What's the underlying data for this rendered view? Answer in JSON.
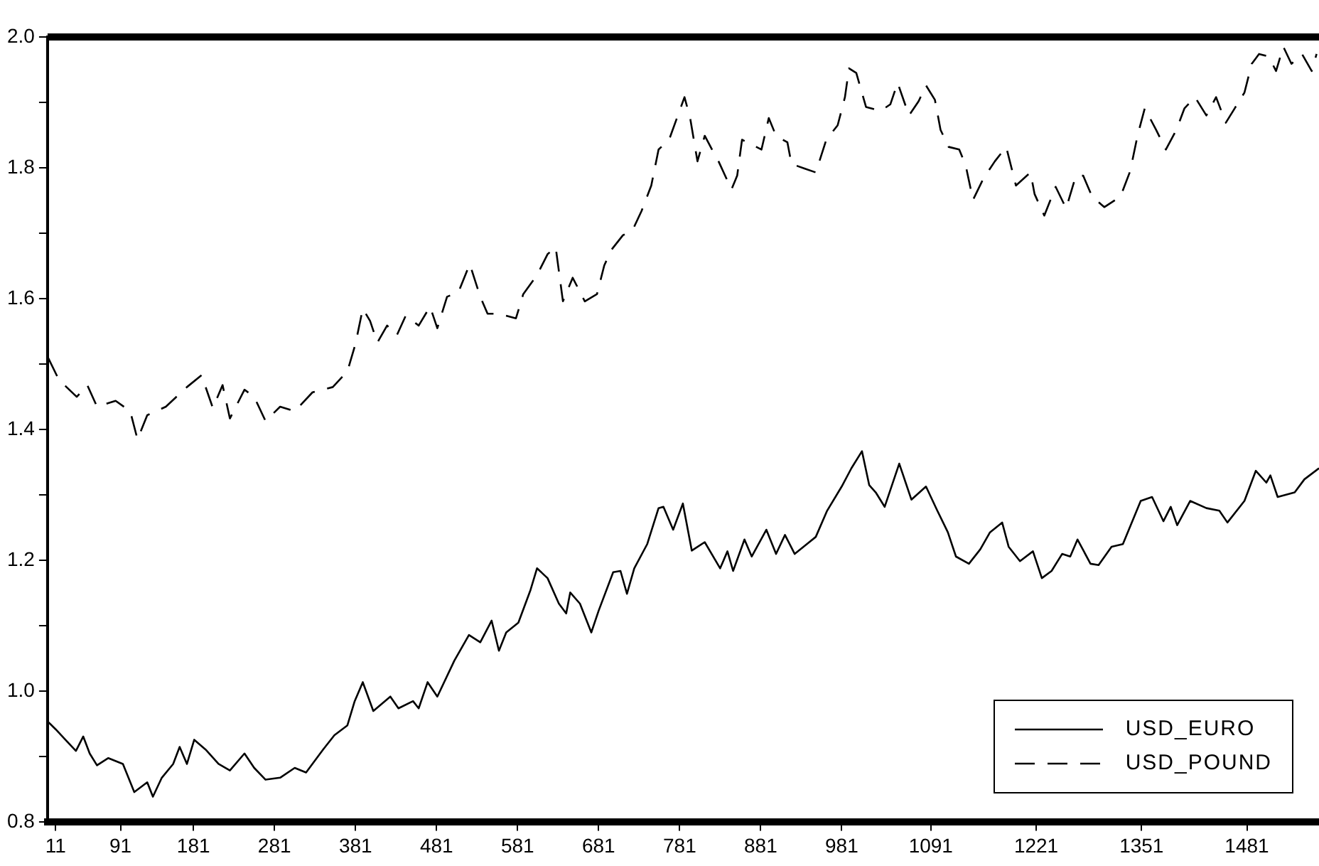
{
  "chart_data": {
    "type": "line",
    "xlim": [
      1,
      1570
    ],
    "xticks": [
      11,
      91,
      181,
      281,
      381,
      481,
      581,
      681,
      781,
      881,
      981,
      1091,
      1221,
      1351,
      1481
    ],
    "ylim": [
      0.8,
      2.0
    ],
    "yticks": [
      0.8,
      {
        "value": 0.9,
        "label": null
      },
      {
        "value": 1,
        "label": "1.0"
      },
      {
        "value": 1.1,
        "label": null
      },
      1.2,
      {
        "value": 1.3,
        "label": null
      },
      1.4,
      {
        "value": 1.5,
        "label": null
      },
      1.6,
      {
        "value": 1.7,
        "label": null
      },
      1.8,
      {
        "value": 1.9,
        "label": null
      },
      {
        "value": 2,
        "label": "2.0"
      }
    ],
    "grid": false,
    "legend": "bottom right",
    "marker": "none",
    "series": [
      {
        "name": "USD_EURO",
        "color": "#000000",
        "line_style": "solid",
        "x": [
          2,
          11,
          23,
          36,
          45,
          53,
          62,
          76,
          94,
          108,
          124,
          131,
          142,
          156,
          164,
          173,
          182,
          196,
          212,
          226,
          244,
          256,
          270,
          288,
          306,
          320,
          341,
          355,
          371,
          380,
          390,
          403,
          424,
          434,
          452,
          459,
          470,
          482,
          503,
          521,
          535,
          549,
          558,
          567,
          582,
          597,
          605,
          618,
          632,
          641,
          646,
          658,
          672,
          681,
          699,
          708,
          716,
          725,
          741,
          755,
          761,
          773,
          785,
          796,
          812,
          831,
          840,
          847,
          861,
          870,
          888,
          900,
          911,
          923,
          949,
          963,
          981,
          993,
          1006,
          1015,
          1023,
          1034,
          1052,
          1067,
          1085,
          1099,
          1112,
          1122,
          1138,
          1152,
          1164,
          1179,
          1187,
          1201,
          1217,
          1228,
          1240,
          1253,
          1263,
          1272,
          1288,
          1298,
          1314,
          1328,
          1350,
          1364,
          1378,
          1387,
          1395,
          1411,
          1431,
          1447,
          1457,
          1478,
          1492,
          1505,
          1510,
          1519,
          1540,
          1552,
          1570
        ],
        "values": [
          0.953,
          0.942,
          0.926,
          0.909,
          0.931,
          0.905,
          0.887,
          0.898,
          0.889,
          0.846,
          0.861,
          0.839,
          0.868,
          0.889,
          0.915,
          0.889,
          0.926,
          0.911,
          0.889,
          0.879,
          0.905,
          0.883,
          0.865,
          0.868,
          0.883,
          0.876,
          0.911,
          0.933,
          0.948,
          0.985,
          1.014,
          0.97,
          0.992,
          0.974,
          0.985,
          0.974,
          1.014,
          0.992,
          1.047,
          1.086,
          1.075,
          1.108,
          1.062,
          1.09,
          1.105,
          1.155,
          1.188,
          1.173,
          1.134,
          1.119,
          1.151,
          1.134,
          1.09,
          1.123,
          1.182,
          1.184,
          1.149,
          1.188,
          1.225,
          1.28,
          1.282,
          1.247,
          1.287,
          1.215,
          1.228,
          1.188,
          1.214,
          1.184,
          1.232,
          1.206,
          1.247,
          1.21,
          1.239,
          1.21,
          1.236,
          1.276,
          1.313,
          1.341,
          1.367,
          1.315,
          1.304,
          1.282,
          1.348,
          1.293,
          1.313,
          1.276,
          1.243,
          1.206,
          1.195,
          1.217,
          1.243,
          1.258,
          1.221,
          1.199,
          1.214,
          1.173,
          1.184,
          1.21,
          1.206,
          1.232,
          1.195,
          1.193,
          1.221,
          1.225,
          1.291,
          1.297,
          1.26,
          1.282,
          1.254,
          1.291,
          1.28,
          1.276,
          1.258,
          1.291,
          1.337,
          1.319,
          1.33,
          1.297,
          1.304,
          1.324,
          1.341
        ]
      },
      {
        "name": "USD_POUND",
        "color": "#000000",
        "line_style": "dashed",
        "x": [
          2,
          15,
          37,
          50,
          62,
          85,
          103,
          112,
          124,
          147,
          173,
          191,
          205,
          217,
          226,
          244,
          256,
          270,
          288,
          306,
          328,
          353,
          371,
          381,
          390,
          399,
          408,
          420,
          432,
          443,
          459,
          473,
          482,
          494,
          508,
          522,
          535,
          544,
          558,
          579,
          588,
          605,
          618,
          628,
          637,
          649,
          664,
          679,
          688,
          697,
          711,
          723,
          734,
          746,
          755,
          768,
          787,
          794,
          803,
          812,
          821,
          829,
          845,
          852,
          858,
          882,
          891,
          900,
          914,
          919,
          935,
          949,
          962,
          976,
          985,
          990,
          999,
          1011,
          1029,
          1041,
          1050,
          1064,
          1076,
          1085,
          1096,
          1103,
          1113,
          1126,
          1134,
          1143,
          1156,
          1170,
          1184,
          1196,
          1214,
          1219,
          1231,
          1245,
          1258,
          1270,
          1279,
          1290,
          1305,
          1325,
          1337,
          1346,
          1355,
          1369,
          1381,
          1394,
          1404,
          1417,
          1431,
          1443,
          1455,
          1466,
          1478,
          1487,
          1496,
          1508,
          1517,
          1526,
          1536,
          1549,
          1561,
          1567
        ],
        "values": [
          1.509,
          1.476,
          1.45,
          1.468,
          1.435,
          1.444,
          1.428,
          1.385,
          1.422,
          1.435,
          1.465,
          1.483,
          1.433,
          1.468,
          1.417,
          1.461,
          1.45,
          1.413,
          1.435,
          1.428,
          1.457,
          1.465,
          1.489,
          1.531,
          1.585,
          1.566,
          1.533,
          1.559,
          1.544,
          1.574,
          1.559,
          1.588,
          1.555,
          1.603,
          1.61,
          1.653,
          1.603,
          1.577,
          1.577,
          1.57,
          1.607,
          1.636,
          1.668,
          1.679,
          1.596,
          1.632,
          1.596,
          1.607,
          1.651,
          1.675,
          1.697,
          1.705,
          1.734,
          1.773,
          1.828,
          1.843,
          1.908,
          1.876,
          1.81,
          1.849,
          1.828,
          1.81,
          1.767,
          1.788,
          1.843,
          1.828,
          1.876,
          1.849,
          1.839,
          1.806,
          1.799,
          1.793,
          1.843,
          1.865,
          1.908,
          1.952,
          1.945,
          1.893,
          1.887,
          1.897,
          1.93,
          1.88,
          1.902,
          1.926,
          1.904,
          1.858,
          1.832,
          1.828,
          1.804,
          1.751,
          1.784,
          1.81,
          1.832,
          1.773,
          1.793,
          1.76,
          1.727,
          1.771,
          1.738,
          1.788,
          1.788,
          1.756,
          1.74,
          1.756,
          1.795,
          1.849,
          1.891,
          1.858,
          1.828,
          1.858,
          1.891,
          1.908,
          1.88,
          1.908,
          1.869,
          1.891,
          1.915,
          1.959,
          1.974,
          1.97,
          1.948,
          1.985,
          1.959,
          1.974,
          1.948,
          1.974
        ]
      }
    ]
  }
}
